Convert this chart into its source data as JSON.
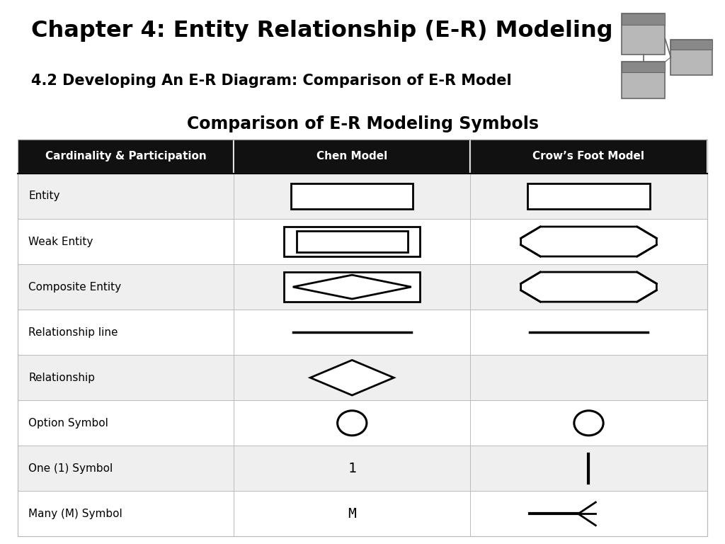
{
  "title1": "Chapter 4: Entity Relationship (E-R) Modeling",
  "title2": "4.2 Developing An E-R Diagram: Comparison of E-R Model",
  "table_title": "Comparison of E-R Modeling Symbols",
  "col_headers": [
    "Cardinality & Participation",
    "Chen Model",
    "Crow’s Foot Model"
  ],
  "row_labels": [
    "Entity",
    "Weak Entity",
    "Composite Entity",
    "Relationship line",
    "Relationship",
    "Option Symbol",
    "One (1) Symbol",
    "Many (M) Symbol"
  ],
  "header_bg": "#111111",
  "header_fg": "#ffffff",
  "row_bg_odd": "#efefef",
  "row_bg_even": "#ffffff",
  "bg_color": "#ffffff",
  "separator_color": "#222222"
}
